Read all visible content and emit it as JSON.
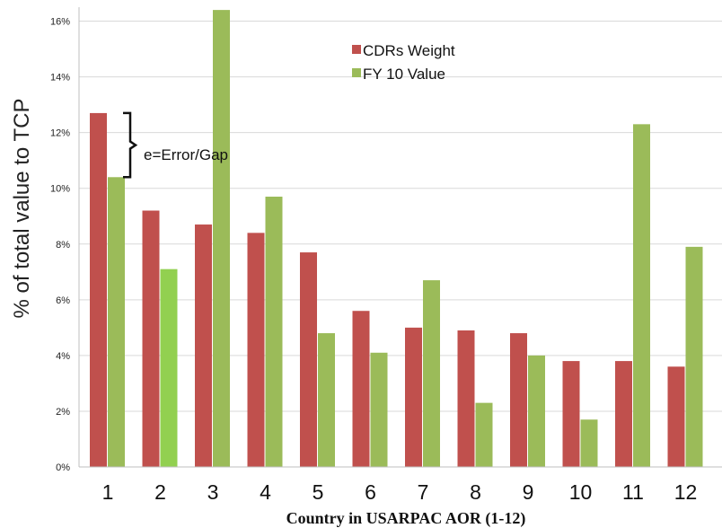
{
  "chart_data": {
    "type": "bar",
    "categories": [
      "1",
      "2",
      "3",
      "4",
      "5",
      "6",
      "7",
      "8",
      "9",
      "10",
      "11",
      "12"
    ],
    "series": [
      {
        "name": "CDRs Weight",
        "color": "#c0504d",
        "values": [
          12.7,
          9.2,
          8.7,
          8.4,
          7.7,
          5.6,
          5.0,
          4.9,
          4.8,
          3.8,
          3.8,
          3.6
        ]
      },
      {
        "name": "FY 10 Value",
        "color": "#9bbb59",
        "values": [
          10.4,
          7.1,
          16.4,
          9.7,
          4.8,
          4.1,
          6.7,
          2.3,
          4.0,
          1.7,
          12.3,
          7.9
        ]
      }
    ],
    "ylim": [
      0,
      16.5
    ],
    "yticks": [
      "0%",
      "2%",
      "4%",
      "6%",
      "8%",
      "10%",
      "12%",
      "14%",
      "16%"
    ],
    "ylabel": "% of  total value to TCP",
    "xlabel": "Country in USARPAC  AOR (1-12)",
    "grid": true,
    "legend_position": "top-center",
    "annotation": "e=Error/Gap",
    "highlight_bar_color": "#92d050"
  }
}
